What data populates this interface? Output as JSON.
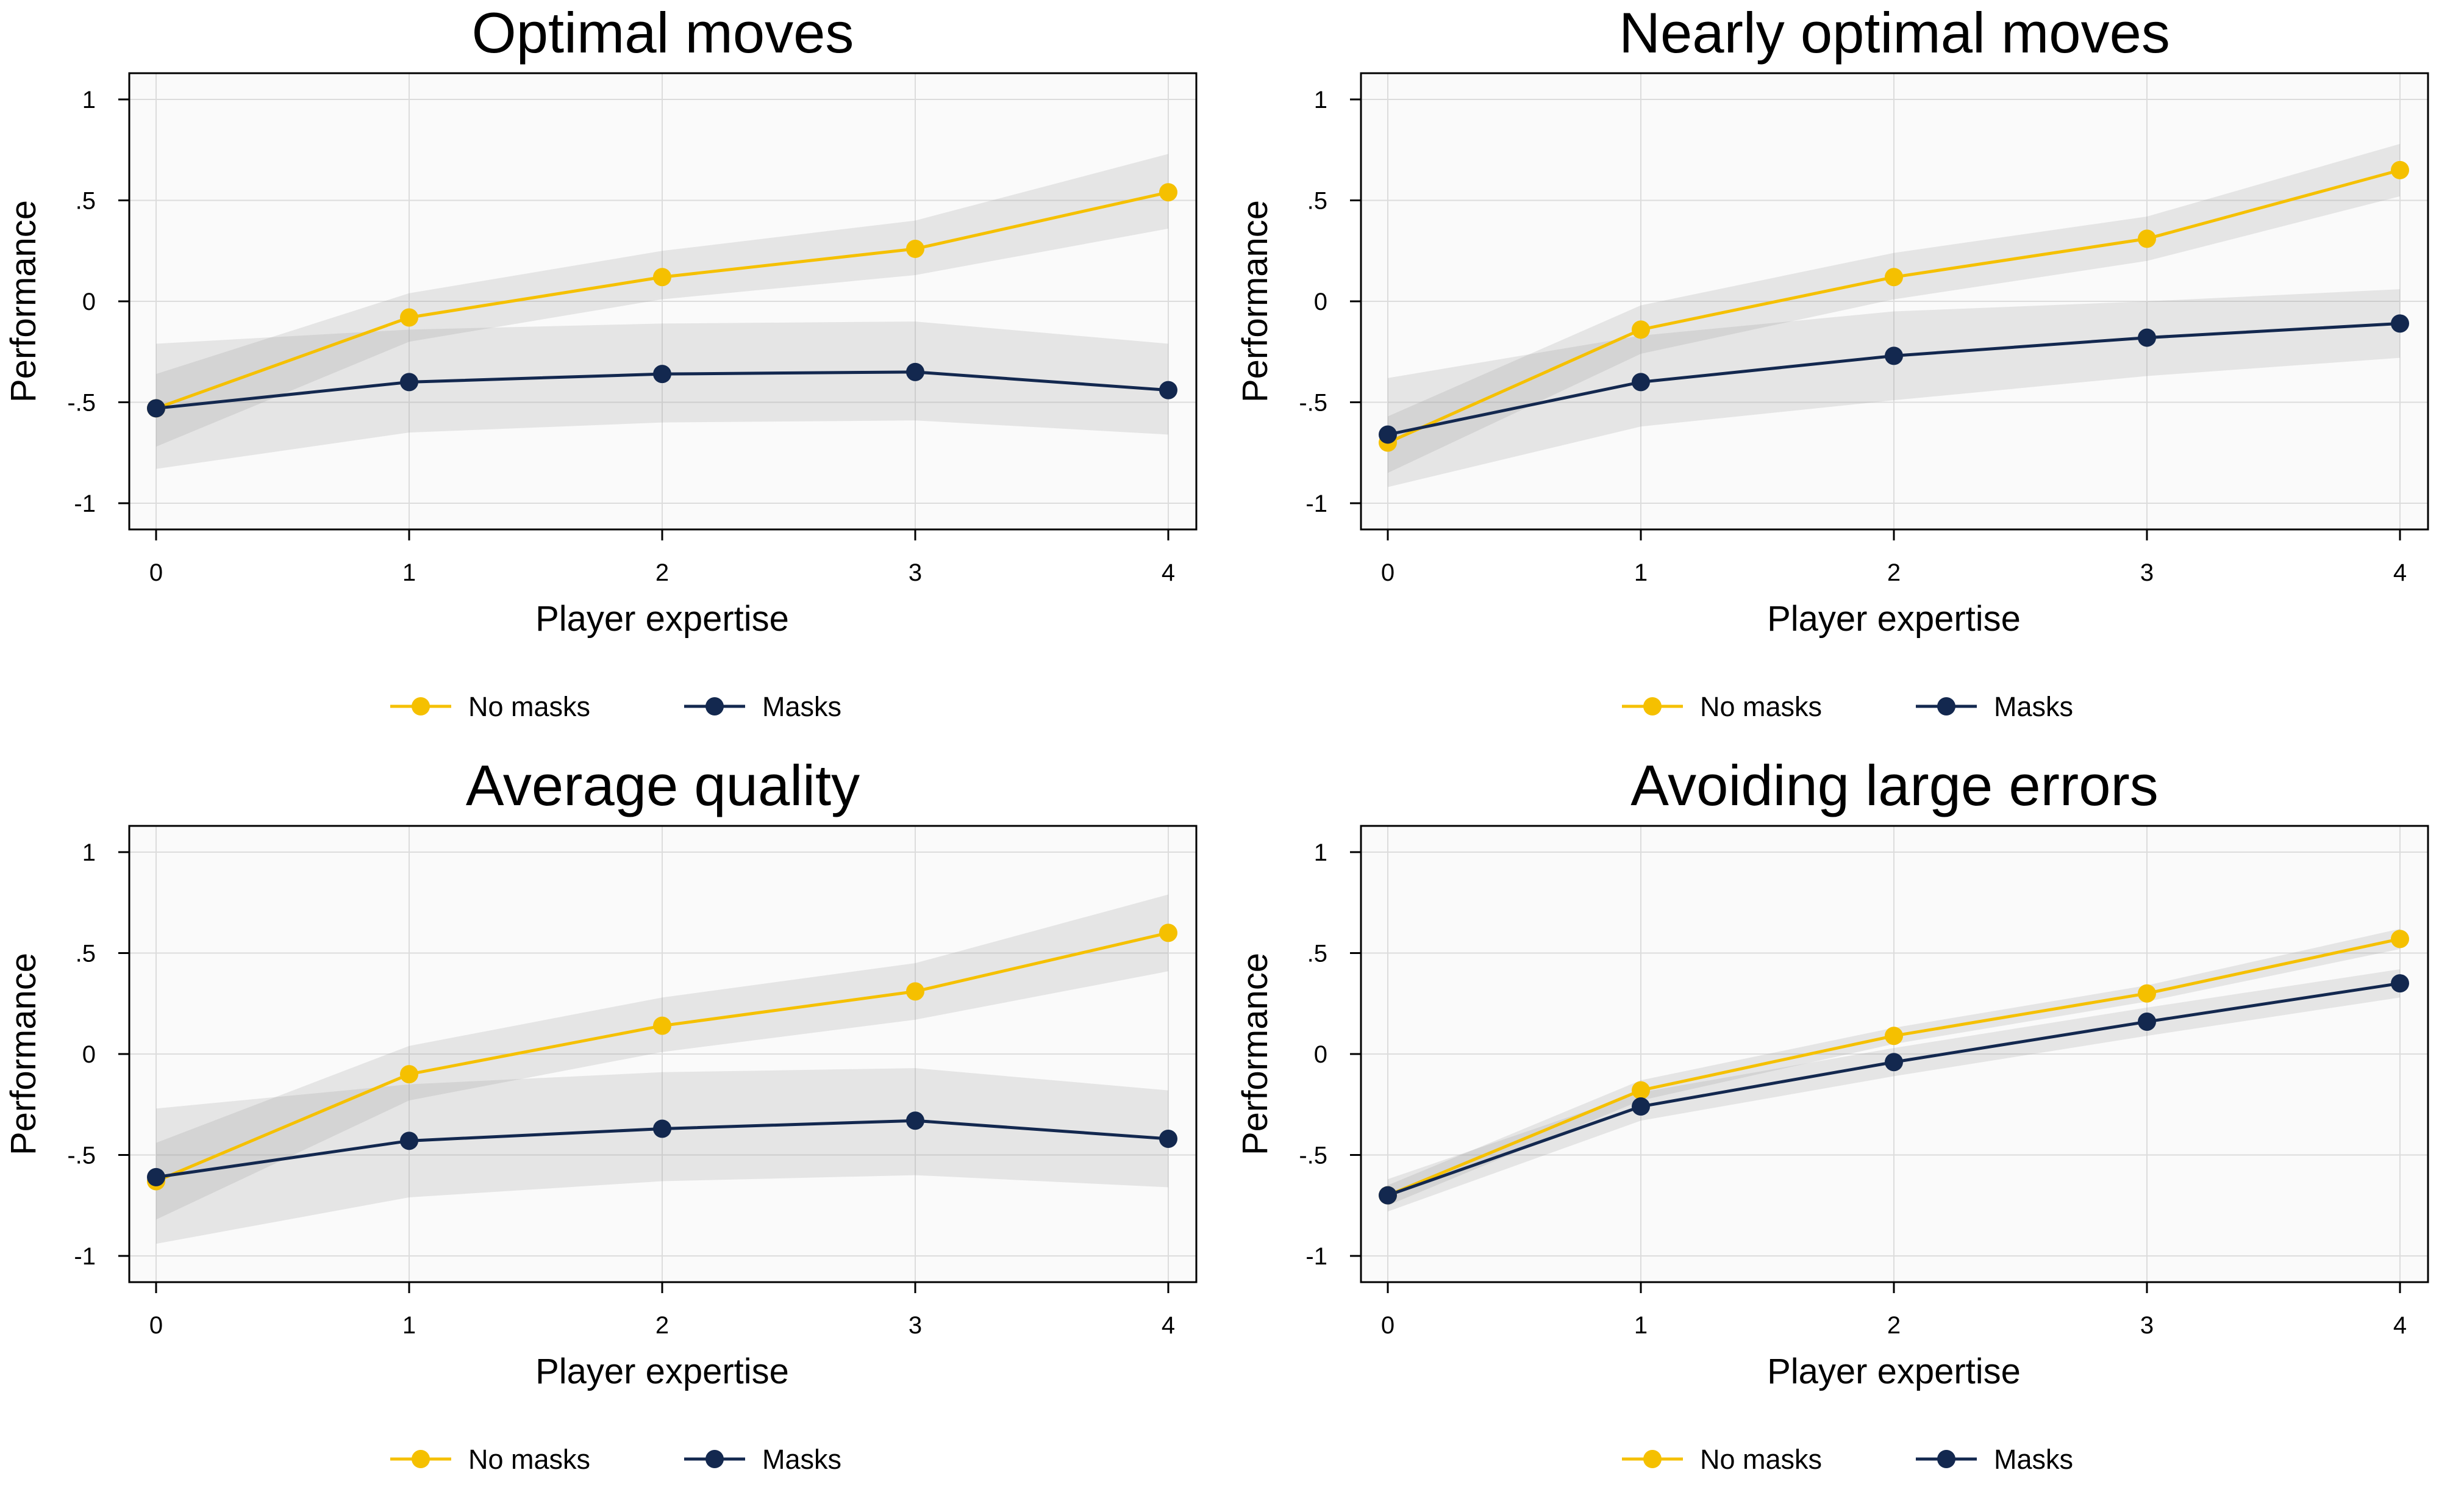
{
  "colors": {
    "no_masks": "#f5c000",
    "masks": "#13284f",
    "ci_band": "#9a9a9a",
    "plot_bg": "#fafafa",
    "grid": "#dcdcdc"
  },
  "legend": {
    "no_masks": "No masks",
    "masks": "Masks"
  },
  "chart_data": [
    {
      "type": "line",
      "title": "Optimal moves",
      "xlabel": "Player expertise",
      "ylabel": "Performance",
      "x": [
        0,
        1,
        2,
        3,
        4
      ],
      "xticks": [
        "0",
        "1",
        "2",
        "3",
        "4"
      ],
      "yticks": [
        "1",
        ".5",
        "0",
        "-.5",
        "-1"
      ],
      "ylim": [
        -1.13,
        1.13
      ],
      "grid": true,
      "legend_position": "bottom",
      "series": [
        {
          "name": "No masks",
          "values": [
            -0.53,
            -0.08,
            0.12,
            0.26,
            0.54
          ],
          "ci_low": [
            -0.72,
            -0.2,
            0.01,
            0.13,
            0.36
          ],
          "ci_high": [
            -0.36,
            0.04,
            0.25,
            0.4,
            0.73
          ]
        },
        {
          "name": "Masks",
          "values": [
            -0.53,
            -0.4,
            -0.36,
            -0.35,
            -0.44
          ],
          "ci_low": [
            -0.83,
            -0.65,
            -0.6,
            -0.59,
            -0.66
          ],
          "ci_high": [
            -0.21,
            -0.14,
            -0.11,
            -0.1,
            -0.21
          ]
        }
      ]
    },
    {
      "type": "line",
      "title": "Nearly optimal moves",
      "xlabel": "Player expertise",
      "ylabel": "Performance",
      "x": [
        0,
        1,
        2,
        3,
        4
      ],
      "xticks": [
        "0",
        "1",
        "2",
        "3",
        "4"
      ],
      "yticks": [
        "1",
        ".5",
        "0",
        "-.5",
        "-1"
      ],
      "ylim": [
        -1.13,
        1.13
      ],
      "grid": true,
      "legend_position": "bottom",
      "series": [
        {
          "name": "No masks",
          "values": [
            -0.7,
            -0.14,
            0.12,
            0.31,
            0.65
          ],
          "ci_low": [
            -0.85,
            -0.26,
            0.01,
            0.2,
            0.52
          ],
          "ci_high": [
            -0.57,
            -0.02,
            0.24,
            0.42,
            0.78
          ]
        },
        {
          "name": "Masks",
          "values": [
            -0.66,
            -0.4,
            -0.27,
            -0.18,
            -0.11
          ],
          "ci_low": [
            -0.92,
            -0.62,
            -0.49,
            -0.37,
            -0.28
          ],
          "ci_high": [
            -0.38,
            -0.17,
            -0.05,
            0.0,
            0.06
          ]
        }
      ]
    },
    {
      "type": "line",
      "title": "Average quality",
      "xlabel": "Player expertise",
      "ylabel": "Performance",
      "x": [
        0,
        1,
        2,
        3,
        4
      ],
      "xticks": [
        "0",
        "1",
        "2",
        "3",
        "4"
      ],
      "yticks": [
        "1",
        ".5",
        "0",
        "-.5",
        "-1"
      ],
      "ylim": [
        -1.13,
        1.13
      ],
      "grid": true,
      "legend_position": "bottom",
      "series": [
        {
          "name": "No masks",
          "values": [
            -0.63,
            -0.1,
            0.14,
            0.31,
            0.6
          ],
          "ci_low": [
            -0.82,
            -0.23,
            0.01,
            0.17,
            0.41
          ],
          "ci_high": [
            -0.44,
            0.04,
            0.28,
            0.45,
            0.79
          ]
        },
        {
          "name": "Masks",
          "values": [
            -0.61,
            -0.43,
            -0.37,
            -0.33,
            -0.42
          ],
          "ci_low": [
            -0.94,
            -0.71,
            -0.63,
            -0.6,
            -0.66
          ],
          "ci_high": [
            -0.27,
            -0.15,
            -0.09,
            -0.07,
            -0.18
          ]
        }
      ]
    },
    {
      "type": "line",
      "title": "Avoiding large errors",
      "xlabel": "Player expertise",
      "ylabel": "Performance",
      "x": [
        0,
        1,
        2,
        3,
        4
      ],
      "xticks": [
        "0",
        "1",
        "2",
        "3",
        "4"
      ],
      "yticks": [
        "1",
        ".5",
        "0",
        "-.5",
        "-1"
      ],
      "ylim": [
        -1.13,
        1.13
      ],
      "grid": true,
      "legend_position": "bottom",
      "series": [
        {
          "name": "No masks",
          "values": [
            -0.7,
            -0.18,
            0.09,
            0.3,
            0.57
          ],
          "ci_low": [
            -0.75,
            -0.23,
            0.05,
            0.26,
            0.52
          ],
          "ci_high": [
            -0.65,
            -0.13,
            0.13,
            0.34,
            0.62
          ]
        },
        {
          "name": "Masks",
          "values": [
            -0.7,
            -0.26,
            -0.04,
            0.16,
            0.35
          ],
          "ci_low": [
            -0.78,
            -0.33,
            -0.11,
            0.09,
            0.28
          ],
          "ci_high": [
            -0.62,
            -0.19,
            0.03,
            0.23,
            0.42
          ]
        }
      ]
    }
  ]
}
